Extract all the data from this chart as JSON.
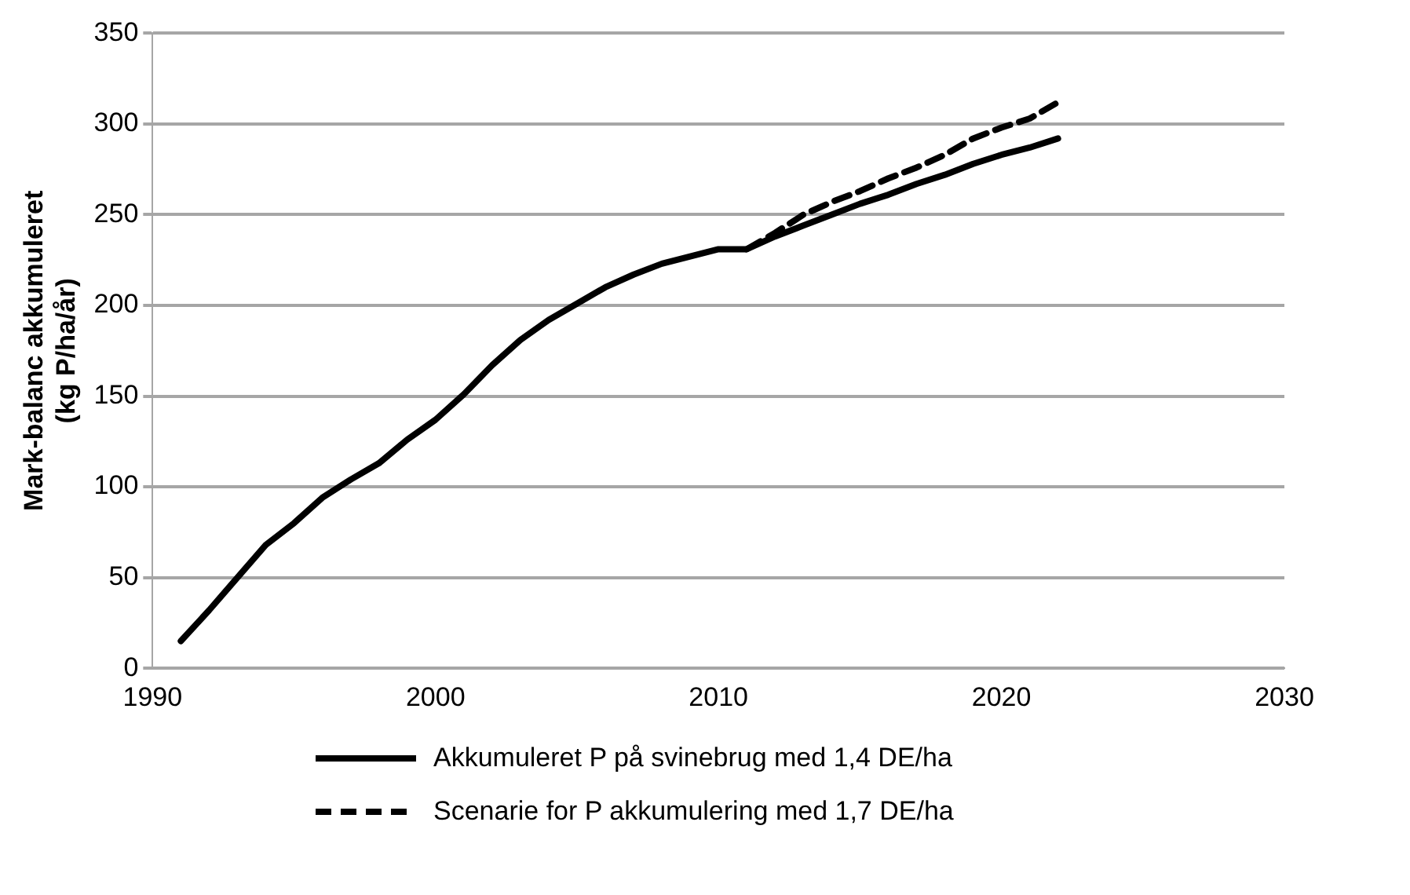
{
  "chart_data": {
    "type": "line",
    "xlabel": null,
    "ylabel": "Mark-balanc akkumuleret\n(kg P/ha/år)",
    "xlim": [
      1990,
      2030
    ],
    "xticks": [
      1990,
      2000,
      2010,
      2020,
      2030
    ],
    "ylim": [
      0,
      350
    ],
    "yticks": [
      0,
      50,
      100,
      150,
      200,
      250,
      300,
      350
    ],
    "grid": "y",
    "legend": "bottom",
    "marker": "none",
    "series": [
      {
        "name": "Akkumuleret P på svinebrug med 1,4 DE/ha",
        "color": "#000000",
        "line_style": "solid",
        "x": [
          1991,
          1992,
          1993,
          1994,
          1995,
          1996,
          1997,
          1998,
          1999,
          2000,
          2001,
          2002,
          2003,
          2004,
          2005,
          2006,
          2007,
          2008,
          2009,
          2010,
          2011,
          2012,
          2013,
          2014,
          2015,
          2016,
          2017,
          2018,
          2019,
          2020,
          2021,
          2022
        ],
        "values": [
          15,
          32,
          50,
          68,
          80,
          94,
          104,
          113,
          126,
          137,
          151,
          167,
          181,
          192,
          201,
          210,
          217,
          223,
          227,
          231,
          231,
          238,
          244,
          250,
          256,
          261,
          267,
          272,
          278,
          283,
          287,
          292
        ]
      },
      {
        "name": "Scenarie for P akkumulering med 1,7 DE/ha",
        "color": "#000000",
        "line_style": "dashed",
        "x": [
          2011,
          2012,
          2013,
          2014,
          2015,
          2016,
          2017,
          2018,
          2019,
          2020,
          2021,
          2022
        ],
        "values": [
          231,
          240,
          250,
          257,
          263,
          270,
          276,
          283,
          292,
          298,
          303,
          312
        ]
      }
    ]
  }
}
